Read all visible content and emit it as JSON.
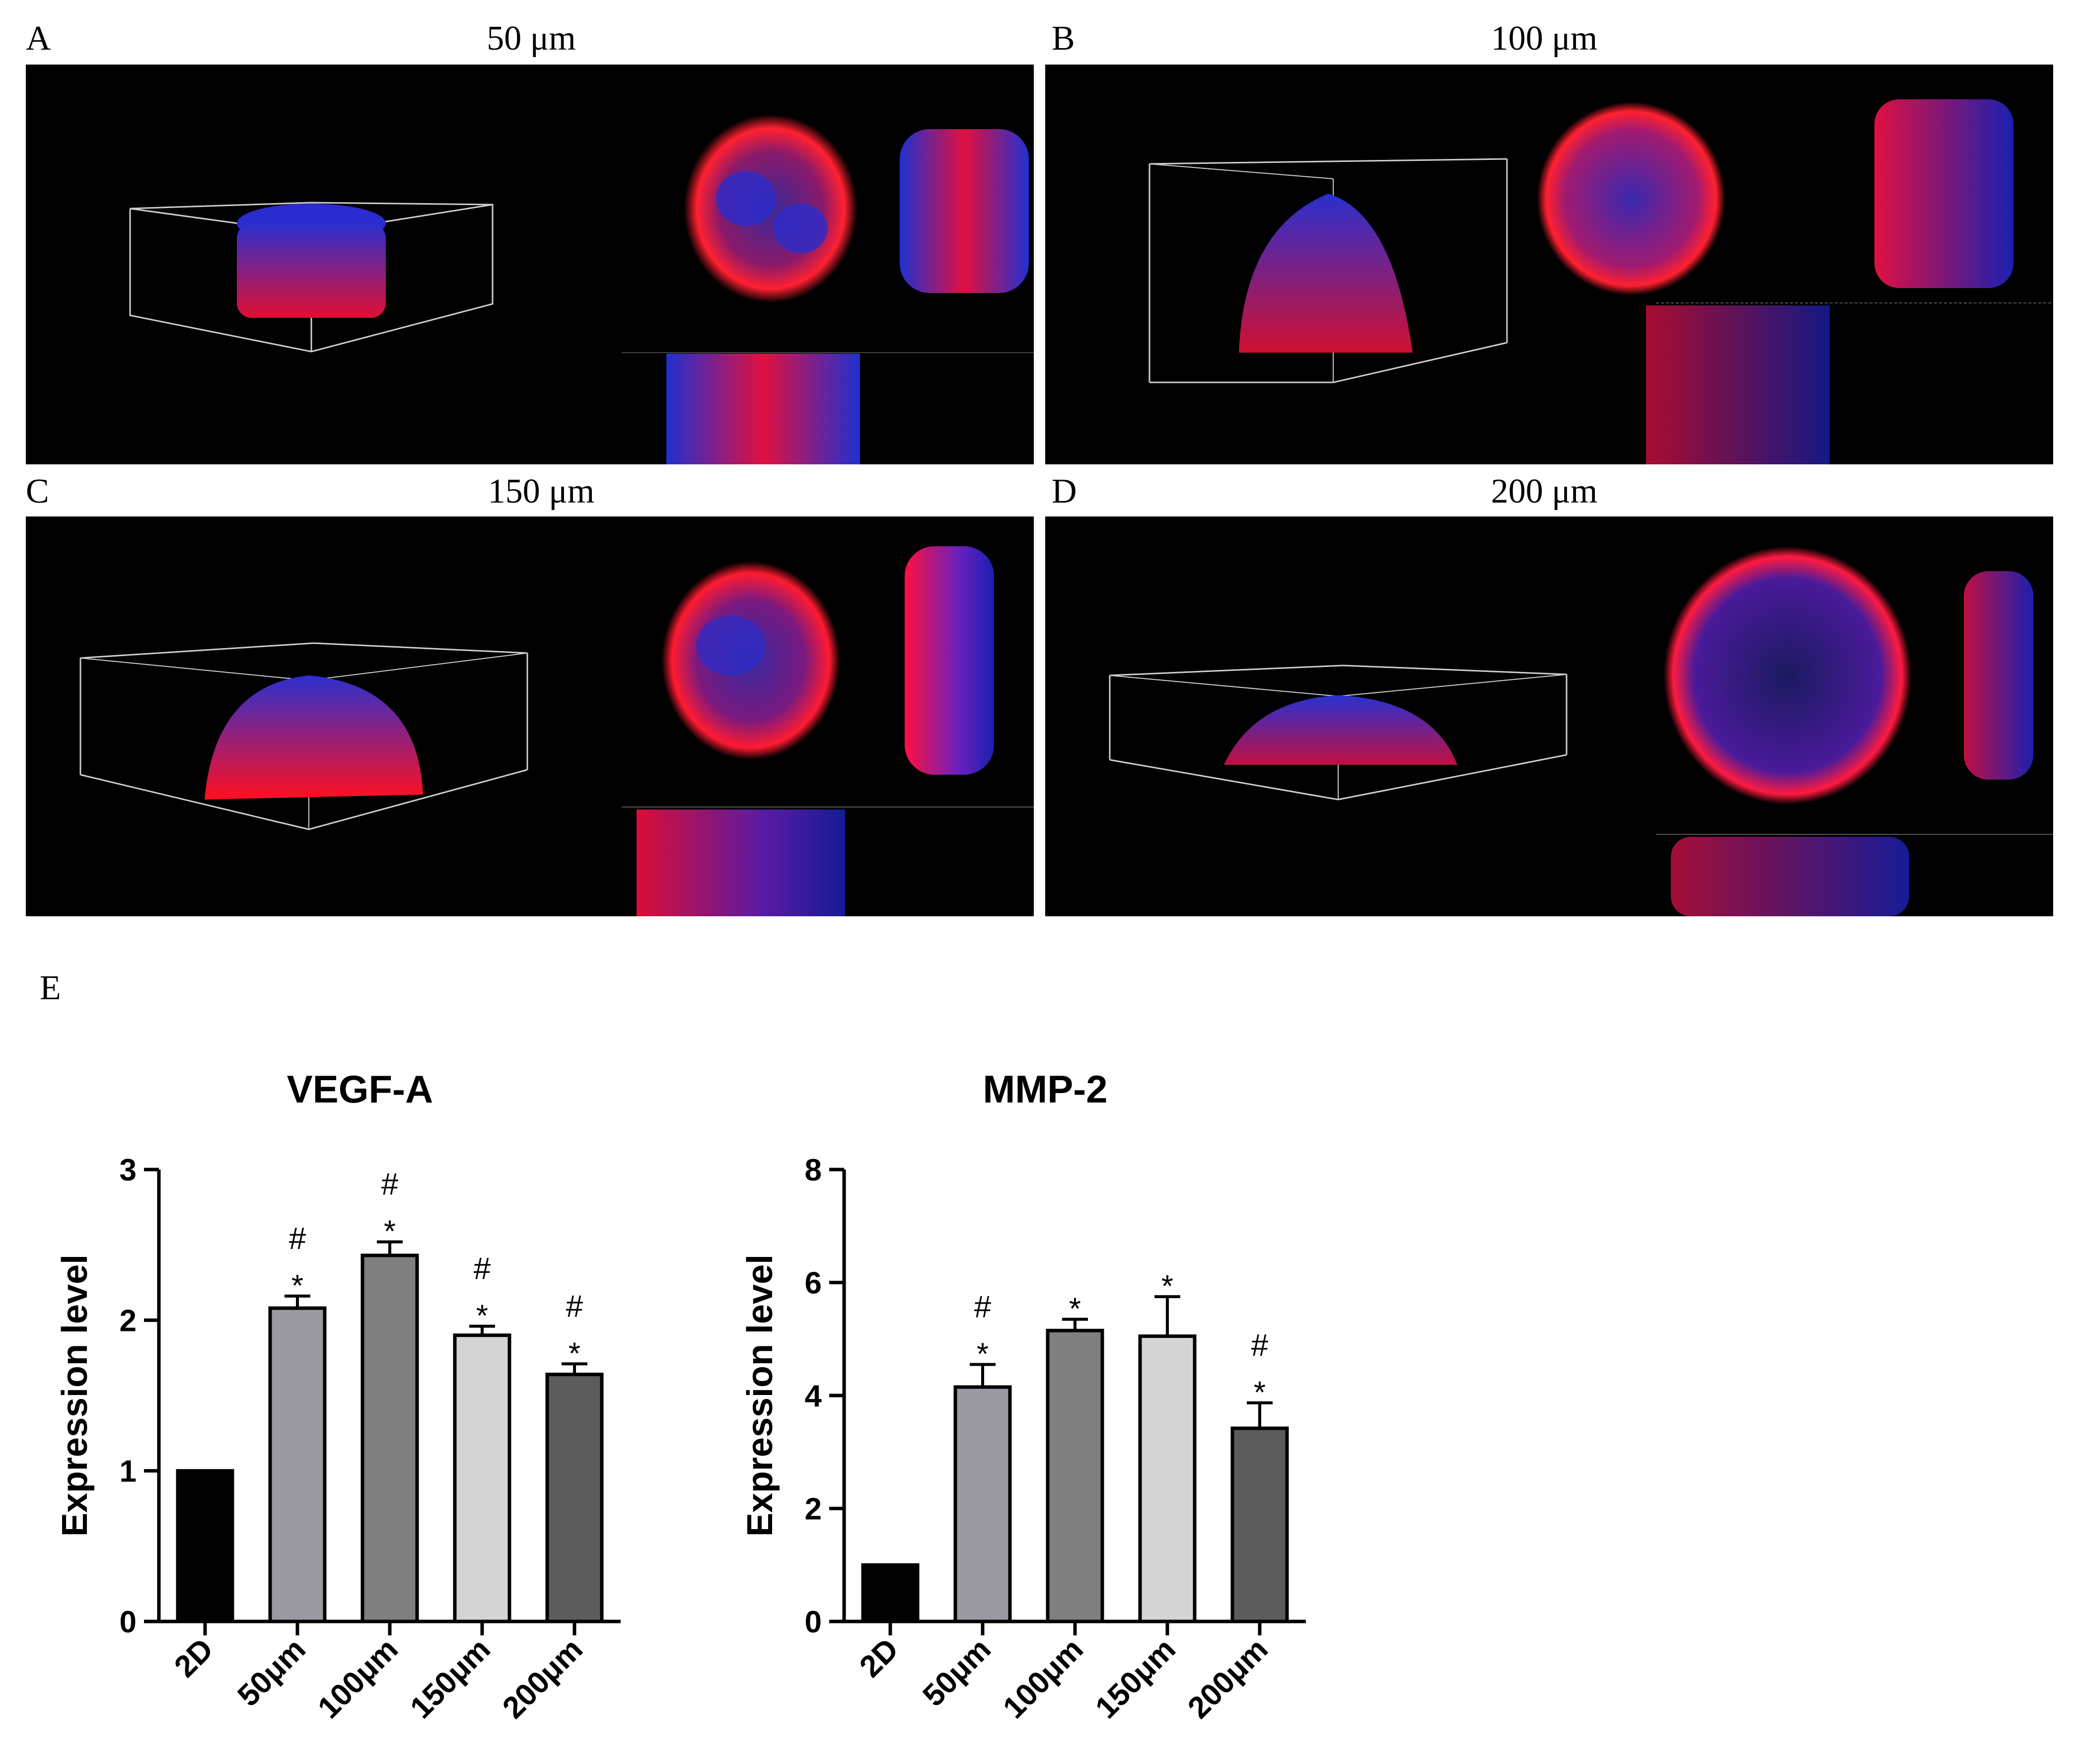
{
  "panels": [
    {
      "letter": "A",
      "title": "50 μm"
    },
    {
      "letter": "B",
      "title": "100 μm"
    },
    {
      "letter": "C",
      "title": "150 μm"
    },
    {
      "letter": "D",
      "title": "200 μm"
    }
  ],
  "chart_panel_letter": "E",
  "colors": {
    "blue": "#2a2cff",
    "red": "#ff1a2a",
    "box": "#cfcfcf"
  },
  "chart_data": [
    {
      "type": "bar",
      "title": "VEGF-A",
      "ylabel": "Expression level",
      "categories": [
        "2D",
        "50μm",
        "100μm",
        "150μm",
        "200μm"
      ],
      "values": [
        1.0,
        2.08,
        2.43,
        1.9,
        1.64
      ],
      "errors": [
        0.0,
        0.08,
        0.09,
        0.06,
        0.07
      ],
      "significance": [
        [],
        [
          "#",
          "*"
        ],
        [
          "#",
          "*"
        ],
        [
          "#",
          "*"
        ],
        [
          "#",
          "*"
        ]
      ],
      "bar_colors": [
        "#000000",
        "#9a9aa0",
        "#7f7f7f",
        "#d4d4d4",
        "#5c5c5c"
      ],
      "ylim": [
        0,
        3
      ],
      "yticks": [
        0,
        1,
        2,
        3
      ]
    },
    {
      "type": "bar",
      "title": "MMP-2",
      "ylabel": "Expression level",
      "categories": [
        "2D",
        "50μm",
        "100μm",
        "150μm",
        "200μm"
      ],
      "values": [
        1.0,
        4.15,
        5.15,
        5.05,
        3.42
      ],
      "errors": [
        0.0,
        0.4,
        0.2,
        0.7,
        0.45
      ],
      "significance": [
        [],
        [
          "#",
          "*"
        ],
        [
          "*"
        ],
        [
          "*"
        ],
        [
          "#",
          "*"
        ]
      ],
      "bar_colors": [
        "#000000",
        "#9a9aa0",
        "#7f7f7f",
        "#d4d4d4",
        "#5c5c5c"
      ],
      "ylim": [
        0,
        8
      ],
      "yticks": [
        0,
        2,
        4,
        6,
        8
      ]
    }
  ]
}
